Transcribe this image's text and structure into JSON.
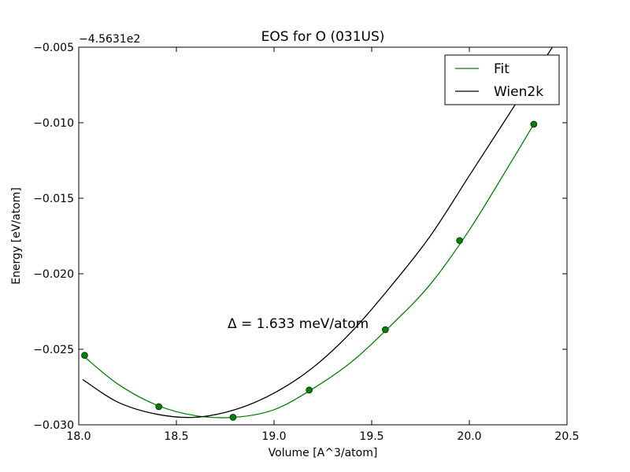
{
  "chart_data": {
    "type": "line",
    "title": "EOS for O (031US)",
    "xlabel": "Volume [A^3/atom]",
    "ylabel": "Energy [eV/atom]",
    "y_offset_label": "−4.5631e2",
    "annotation": "Δ = 1.633 meV/atom",
    "xlim": [
      18.0,
      20.5
    ],
    "ylim": [
      -0.03,
      -0.005
    ],
    "x_ticks": [
      18.0,
      18.5,
      19.0,
      19.5,
      20.0,
      20.5
    ],
    "x_tick_labels": [
      "18.0",
      "18.5",
      "19.0",
      "19.5",
      "20.0",
      "20.5"
    ],
    "y_ticks": [
      -0.03,
      -0.025,
      -0.02,
      -0.015,
      -0.01,
      -0.005
    ],
    "y_tick_labels": [
      "−0.030",
      "−0.025",
      "−0.020",
      "−0.015",
      "−0.010",
      "−0.005"
    ],
    "grid": false,
    "legend_position": "top-right",
    "colors": {
      "fit": "#008000",
      "wien2k": "#000000",
      "points": "#008000"
    },
    "series": [
      {
        "name": "Fit",
        "kind": "line",
        "x": [
          18.02,
          18.2,
          18.4,
          18.6,
          18.8,
          19.0,
          19.2,
          19.4,
          19.6,
          19.8,
          20.0,
          20.2,
          20.33
        ],
        "values": [
          -0.0254,
          -0.0273,
          -0.0287,
          -0.0294,
          -0.0295,
          -0.029,
          -0.0276,
          -0.0258,
          -0.0234,
          -0.0207,
          -0.0171,
          -0.0129,
          -0.0101
        ]
      },
      {
        "name": "Wien2k",
        "kind": "line",
        "x": [
          18.02,
          18.2,
          18.4,
          18.6,
          18.8,
          19.0,
          19.2,
          19.4,
          19.6,
          19.8,
          20.0,
          20.2,
          20.4,
          20.45
        ],
        "values": [
          -0.027,
          -0.0285,
          -0.0293,
          -0.0295,
          -0.029,
          -0.0279,
          -0.0262,
          -0.0238,
          -0.0208,
          -0.0175,
          -0.0135,
          -0.0095,
          -0.0055,
          -0.0045
        ]
      },
      {
        "name": "",
        "kind": "points",
        "x": [
          18.03,
          18.41,
          18.79,
          19.18,
          19.57,
          19.95,
          20.33
        ],
        "values": [
          -0.0254,
          -0.0288,
          -0.0295,
          -0.0277,
          -0.0237,
          -0.0178,
          -0.0101
        ]
      }
    ],
    "legend": [
      {
        "label": "Fit",
        "color": "#008000"
      },
      {
        "label": "Wien2k",
        "color": "#000000"
      }
    ]
  }
}
